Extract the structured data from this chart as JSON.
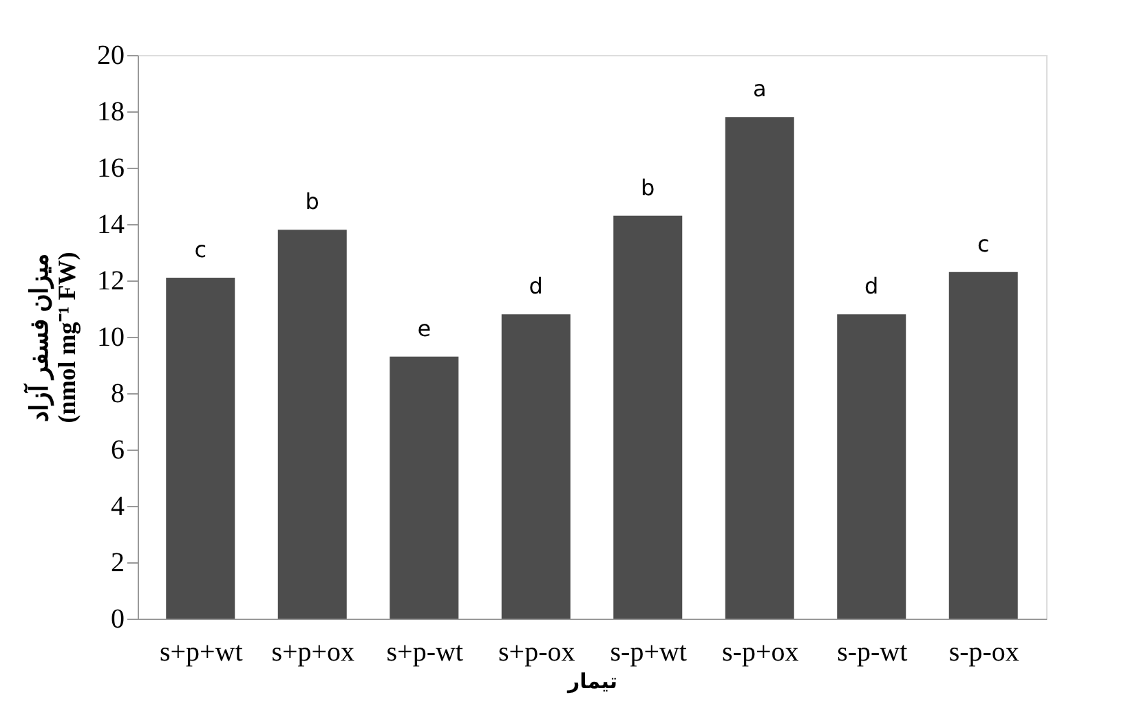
{
  "chart_data": {
    "type": "bar",
    "categories": [
      "s+p+wt",
      "s+p+ox",
      "s+p-wt",
      "s+p-ox",
      "s-p+wt",
      "s-p+ox",
      "s-p-wt",
      "s-p-ox"
    ],
    "values": [
      12.1,
      13.8,
      9.3,
      10.8,
      14.3,
      17.8,
      10.8,
      12.3
    ],
    "color": "#4d4d4d",
    "ylabel": [
      "میزان فسفر آزاد",
      "(nmol mg⁻¹ FW)"
    ],
    "xlabel": "تیمار",
    "ylim": [
      0,
      20
    ],
    "yticks": [
      0,
      2,
      4,
      6,
      8,
      10,
      12,
      14,
      16,
      18,
      20
    ],
    "grid": false,
    "annotations": [
      {
        "text": "c",
        "x": "s+p+wt",
        "y": 12.1
      },
      {
        "text": "b",
        "x": "s+p+ox",
        "y": 13.8
      },
      {
        "text": "e",
        "x": "s+p-wt",
        "y": 9.3
      },
      {
        "text": "d",
        "x": "s+p-ox",
        "y": 10.8
      },
      {
        "text": "b",
        "x": "s-p+wt",
        "y": 14.3
      },
      {
        "text": "a",
        "x": "s-p+ox",
        "y": 17.8
      },
      {
        "text": "d",
        "x": "s-p-wt",
        "y": 10.8
      },
      {
        "text": "c",
        "x": "s-p-ox",
        "y": 12.3
      }
    ]
  }
}
